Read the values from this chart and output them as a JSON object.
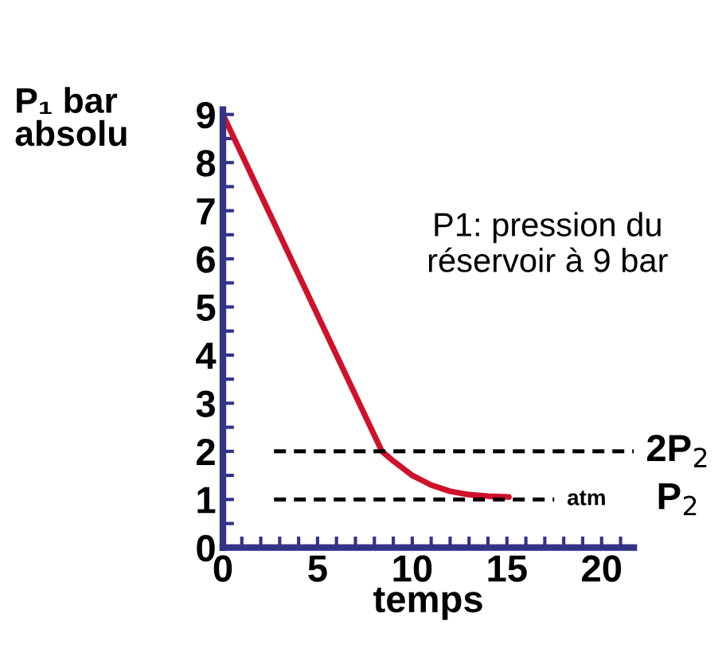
{
  "chart_data": {
    "type": "line",
    "ylabel": "P₁ bar\nabsolu",
    "xlabel": "temps",
    "series": [
      {
        "color": "#d0112b",
        "line_style": "solid",
        "x": [
          0,
          8.4,
          9,
          10,
          11,
          12,
          13,
          14,
          15.1
        ],
        "values": [
          9,
          2,
          1.8,
          1.5,
          1.3,
          1.17,
          1.1,
          1.07,
          1.05
        ]
      },
      {
        "color": "#000000",
        "line_style": "dashed",
        "name": "2P$_{2}$",
        "x": [
          2.7,
          21.7
        ],
        "values": [
          2,
          2
        ]
      },
      {
        "color": "#000000",
        "line_style": "dashed",
        "name": "P$_{2}$",
        "x": [
          2.7,
          17.5
        ],
        "values": [
          1,
          1
        ]
      }
    ],
    "annotations": [
      "atm",
      "P1: pression du\nréservoir à 9 bar"
    ],
    "xlim": [
      0,
      21.7
    ],
    "ylim": [
      0,
      9.1
    ],
    "xticks": [
      0,
      {
        "value": 1,
        "label": null
      },
      {
        "value": 2,
        "label": null
      },
      {
        "value": 3,
        "label": null
      },
      {
        "value": 4,
        "label": null
      },
      5,
      {
        "value": 6,
        "label": null
      },
      {
        "value": 7,
        "label": null
      },
      {
        "value": 8,
        "label": null
      },
      {
        "value": 9,
        "label": null
      },
      10,
      {
        "value": 11,
        "label": null
      },
      {
        "value": 12,
        "label": null
      },
      {
        "value": 13,
        "label": null
      },
      {
        "value": 14,
        "label": null
      },
      15,
      {
        "value": 16,
        "label": null
      },
      {
        "value": 17,
        "label": null
      },
      {
        "value": 18,
        "label": null
      },
      {
        "value": 19,
        "label": null
      },
      20,
      {
        "value": 21,
        "label": null
      }
    ],
    "yticks": [
      0,
      {
        "value": 0.5,
        "label": null
      },
      1,
      {
        "value": 1.5,
        "label": null
      },
      2,
      {
        "value": 2.5,
        "label": null
      },
      3,
      {
        "value": 3.5,
        "label": null
      },
      4,
      {
        "value": 4.5,
        "label": null
      },
      5,
      {
        "value": 5.5,
        "label": null
      },
      6,
      {
        "value": 6.5,
        "label": null
      },
      7,
      {
        "value": 7.5,
        "label": null
      },
      8,
      {
        "value": 8.5,
        "label": null
      },
      9
    ],
    "grid": false,
    "legend": false,
    "marker": "none"
  }
}
